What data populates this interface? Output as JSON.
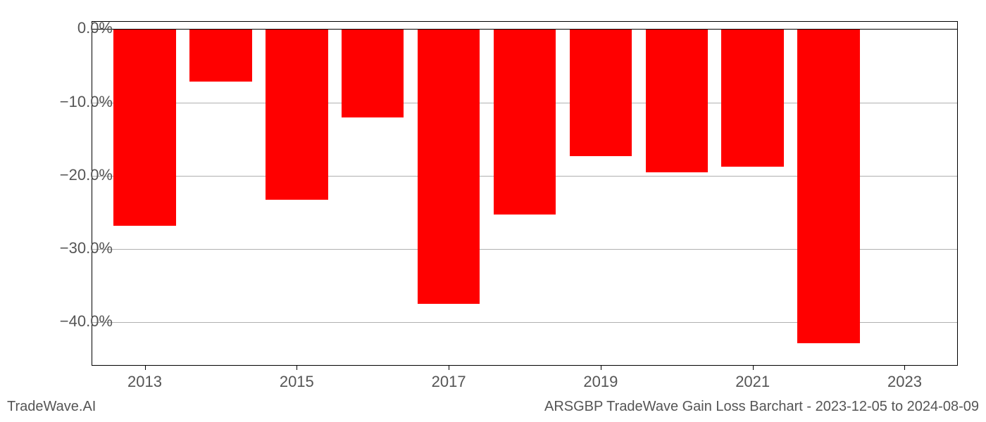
{
  "chart": {
    "type": "bar",
    "years": [
      2013,
      2014,
      2015,
      2016,
      2017,
      2018,
      2019,
      2020,
      2021,
      2022
    ],
    "values": [
      -26.8,
      -7.2,
      -23.3,
      -12.0,
      -37.5,
      -25.3,
      -17.3,
      -19.5,
      -18.8,
      -42.8
    ],
    "bar_color": "#ff0000",
    "background_color": "#ffffff",
    "grid_color": "#b0b0b0",
    "ylim": [
      -46,
      1
    ],
    "yticks": [
      0,
      -10,
      -20,
      -30,
      -40
    ],
    "ytick_labels": [
      "0.0%",
      "−10.0%",
      "−20.0%",
      "−30.0%",
      "−40.0%"
    ],
    "xticks": [
      2013,
      2015,
      2017,
      2019,
      2021,
      2023
    ],
    "xtick_labels": [
      "2013",
      "2015",
      "2017",
      "2019",
      "2021",
      "2023"
    ],
    "xlim": [
      2012.3,
      2023.7
    ],
    "bar_width": 0.82,
    "tick_fontsize": 22,
    "footer_fontsize": 20
  },
  "footer": {
    "left": "TradeWave.AI",
    "right": "ARSGBP TradeWave Gain Loss Barchart - 2023-12-05 to 2024-08-09"
  }
}
